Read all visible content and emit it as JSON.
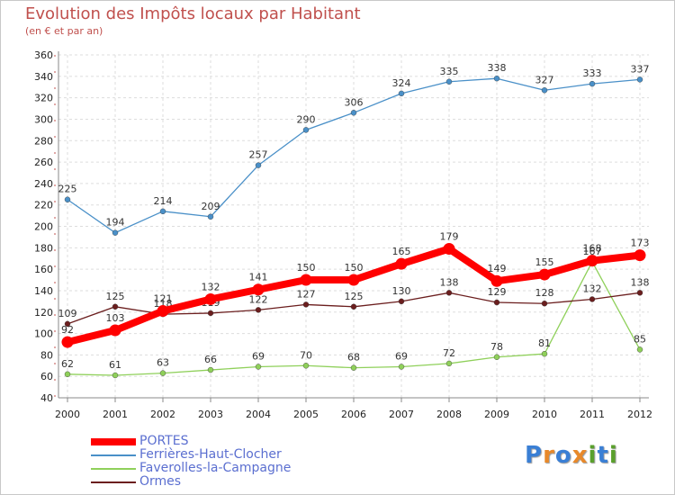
{
  "header": {
    "title": "Evolution des Impôts locaux par Habitant",
    "subtitle": "(en € et par an)"
  },
  "logo": {
    "letters": [
      "P",
      "r",
      "o",
      "x",
      "i",
      "t",
      "i"
    ],
    "colors": [
      "#3a7fd5",
      "#e8892a",
      "#3a7fd5",
      "#e8892a",
      "#5aa02c",
      "#3a7fd5",
      "#5aa02c"
    ]
  },
  "chart_data": {
    "type": "line",
    "title": "Evolution des Impôts locaux par Habitant",
    "subtitle": "(en € et par an)",
    "xlabel": "",
    "ylabel": "",
    "categories": [
      "2000",
      "2001",
      "2002",
      "2003",
      "2004",
      "2005",
      "2006",
      "2007",
      "2008",
      "2009",
      "2010",
      "2011",
      "2012"
    ],
    "ylim": [
      40,
      360
    ],
    "yticks": [
      40,
      60,
      80,
      100,
      120,
      140,
      160,
      180,
      200,
      220,
      240,
      260,
      280,
      300,
      320,
      340,
      360
    ],
    "grid": true,
    "legend_position": "bottom-left",
    "series": [
      {
        "name": "Ferrières-Haut-Clocher",
        "color": "#4a90c8",
        "values": [
          225,
          194,
          214,
          209,
          257,
          290,
          306,
          324,
          335,
          338,
          327,
          333,
          337
        ]
      },
      {
        "name": "Faverolles-la-Campagne",
        "color": "#8fd05a",
        "values": [
          62,
          61,
          63,
          66,
          69,
          70,
          68,
          69,
          72,
          78,
          81,
          167,
          85
        ]
      },
      {
        "name": "Ormes",
        "color": "#6b1e1e",
        "values": [
          109,
          125,
          118,
          119,
          122,
          127,
          125,
          130,
          138,
          129,
          128,
          132,
          138
        ]
      },
      {
        "name": "PORTES",
        "color": "#ff0000",
        "values": [
          92,
          103,
          121,
          132,
          141,
          150,
          150,
          165,
          179,
          149,
          155,
          168,
          173
        ]
      }
    ],
    "legend_order": [
      "PORTES",
      "Ferrières-Haut-Clocher",
      "Faverolles-la-Campagne",
      "Ormes"
    ]
  }
}
